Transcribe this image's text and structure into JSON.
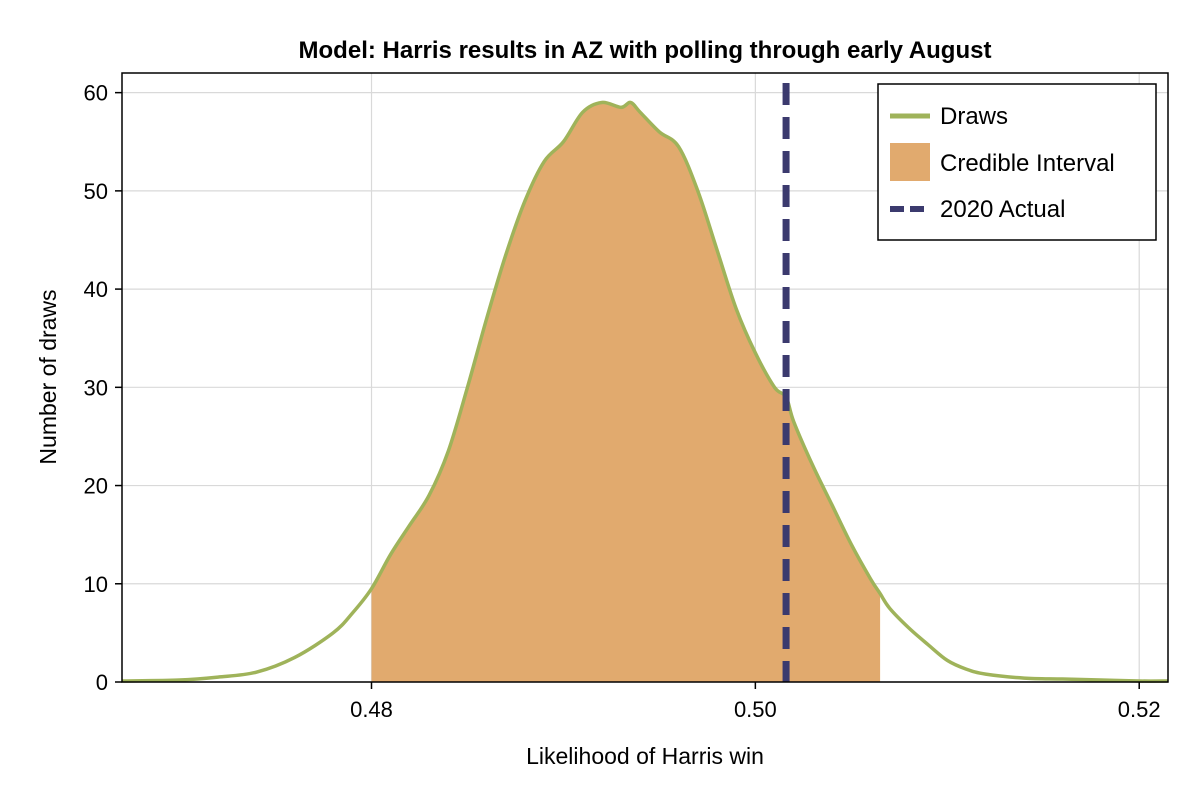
{
  "chart_data": {
    "type": "area",
    "title": "Model: Harris results in AZ with polling through early August",
    "xlabel": "Likelihood of Harris win",
    "ylabel": "Number of draws",
    "xlim": [
      0.467,
      0.5215
    ],
    "ylim": [
      0,
      62
    ],
    "xticks": [
      0.48,
      0.5,
      0.52
    ],
    "xtick_labels": [
      "0.48",
      "0.50",
      "0.52"
    ],
    "yticks": [
      0,
      10,
      20,
      30,
      40,
      50,
      60
    ],
    "ytick_labels": [
      "0",
      "10",
      "20",
      "30",
      "40",
      "50",
      "60"
    ],
    "grid": true,
    "legend_position": "top-right",
    "series": [
      {
        "name": "Draws",
        "kind": "line",
        "color": "#9fb35a",
        "x": [
          0.467,
          0.47,
          0.472,
          0.474,
          0.476,
          0.478,
          0.479,
          0.48,
          0.481,
          0.482,
          0.483,
          0.484,
          0.485,
          0.486,
          0.487,
          0.488,
          0.489,
          0.49,
          0.491,
          0.492,
          0.493,
          0.4935,
          0.494,
          0.495,
          0.496,
          0.497,
          0.498,
          0.499,
          0.5,
          0.501,
          0.5016,
          0.502,
          0.503,
          0.504,
          0.505,
          0.506,
          0.5065,
          0.507,
          0.508,
          0.509,
          0.51,
          0.511,
          0.512,
          0.514,
          0.516,
          0.518,
          0.52,
          0.5215
        ],
        "y": [
          0.1,
          0.2,
          0.5,
          1.0,
          2.5,
          5.0,
          7.0,
          9.5,
          13.0,
          16.0,
          19.0,
          23.5,
          30.0,
          37.0,
          43.5,
          49.0,
          53.0,
          55.0,
          58.0,
          59.0,
          58.5,
          59.0,
          58.0,
          56.0,
          54.5,
          50.0,
          44.0,
          38.0,
          33.5,
          30.0,
          29.0,
          26.5,
          22.0,
          18.0,
          14.0,
          10.5,
          9.0,
          7.5,
          5.5,
          3.8,
          2.2,
          1.3,
          0.8,
          0.4,
          0.3,
          0.2,
          0.1,
          0.1
        ]
      },
      {
        "name": "Credible Interval",
        "kind": "band",
        "color": "#e1aa6e",
        "x_range": [
          0.48,
          0.5065
        ]
      },
      {
        "name": "2020 Actual",
        "kind": "vline",
        "color": "#3b3a6e",
        "x": 0.5016
      }
    ]
  }
}
